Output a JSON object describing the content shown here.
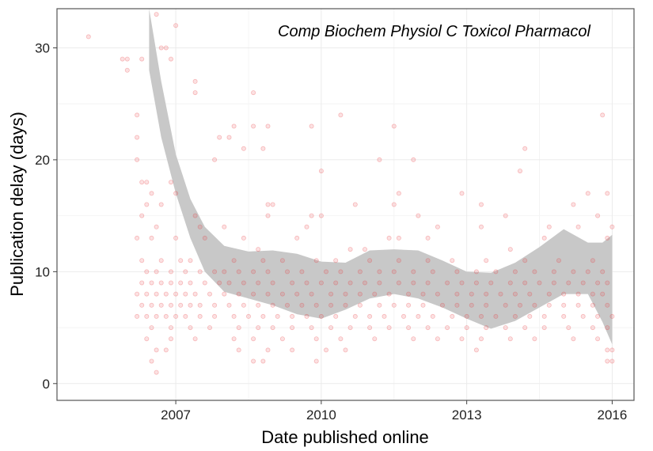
{
  "chart_data": {
    "type": "scatter",
    "title": "Comp Biochem Physiol C Toxicol Pharmacol",
    "xlabel": "Date published online",
    "ylabel": "Publication delay (days)",
    "xlim": [
      2004.55,
      2016.45
    ],
    "ylim": [
      -1.5,
      33.5
    ],
    "x_ticks": [
      {
        "value": 2007,
        "label": "2007"
      },
      {
        "value": 2010,
        "label": "2010"
      },
      {
        "value": 2013,
        "label": "2013"
      },
      {
        "value": 2016,
        "label": "2016"
      }
    ],
    "y_ticks": [
      {
        "value": 0,
        "label": "0"
      },
      {
        "value": 10,
        "label": "10"
      },
      {
        "value": 20,
        "label": "20"
      },
      {
        "value": 30,
        "label": "30"
      }
    ],
    "grid": true,
    "point_color": "#e8393c",
    "band_color": "#c8c8c8",
    "points": [
      [
        2005.2,
        31
      ],
      [
        2005.9,
        29
      ],
      [
        2006.0,
        29
      ],
      [
        2006.0,
        28
      ],
      [
        2006.3,
        29
      ],
      [
        2006.6,
        33
      ],
      [
        2006.7,
        30
      ],
      [
        2006.8,
        30
      ],
      [
        2006.9,
        29
      ],
      [
        2007.0,
        32
      ],
      [
        2007.4,
        27
      ],
      [
        2007.4,
        26
      ],
      [
        2008.6,
        26
      ],
      [
        2008.2,
        23
      ],
      [
        2008.6,
        23
      ],
      [
        2008.9,
        23
      ],
      [
        2009.8,
        23
      ],
      [
        2010.4,
        24
      ],
      [
        2011.5,
        23
      ],
      [
        2014.2,
        21
      ],
      [
        2015.8,
        24
      ],
      [
        2006.2,
        24
      ],
      [
        2006.2,
        22
      ],
      [
        2006.2,
        20
      ],
      [
        2006.3,
        18
      ],
      [
        2007.9,
        22
      ],
      [
        2008.1,
        22
      ],
      [
        2007.8,
        20
      ],
      [
        2008.4,
        21
      ],
      [
        2008.8,
        21
      ],
      [
        2011.2,
        20
      ],
      [
        2011.9,
        20
      ],
      [
        2014.1,
        19
      ],
      [
        2010.0,
        19
      ],
      [
        2006.4,
        18
      ],
      [
        2006.9,
        18
      ],
      [
        2006.5,
        17
      ],
      [
        2007.0,
        17
      ],
      [
        2012.9,
        17
      ],
      [
        2015.5,
        17
      ],
      [
        2015.9,
        17
      ],
      [
        2011.6,
        17
      ],
      [
        2006.4,
        16
      ],
      [
        2006.7,
        16
      ],
      [
        2008.9,
        16
      ],
      [
        2009.0,
        16
      ],
      [
        2010.7,
        16
      ],
      [
        2011.5,
        16
      ],
      [
        2013.3,
        16
      ],
      [
        2015.2,
        16
      ],
      [
        2006.3,
        15
      ],
      [
        2007.4,
        15
      ],
      [
        2008.9,
        15
      ],
      [
        2009.8,
        15
      ],
      [
        2010.0,
        15
      ],
      [
        2013.8,
        15
      ],
      [
        2015.7,
        15
      ],
      [
        2012.0,
        15
      ],
      [
        2006.6,
        14
      ],
      [
        2007.5,
        14
      ],
      [
        2009.7,
        14
      ],
      [
        2012.4,
        14
      ],
      [
        2013.3,
        14
      ],
      [
        2014.7,
        14
      ],
      [
        2015.3,
        14
      ],
      [
        2016.0,
        14
      ],
      [
        2008.0,
        14
      ],
      [
        2006.2,
        13
      ],
      [
        2006.5,
        13
      ],
      [
        2007.0,
        13
      ],
      [
        2007.6,
        13
      ],
      [
        2008.4,
        13
      ],
      [
        2009.5,
        13
      ],
      [
        2011.4,
        13
      ],
      [
        2011.6,
        13
      ],
      [
        2012.2,
        13
      ],
      [
        2014.6,
        13
      ],
      [
        2015.9,
        13
      ],
      [
        2010.6,
        12
      ],
      [
        2010.9,
        12
      ],
      [
        2008.7,
        12
      ],
      [
        2013.9,
        12
      ],
      [
        2006.3,
        11
      ],
      [
        2006.7,
        11
      ],
      [
        2007.1,
        11
      ],
      [
        2007.3,
        11
      ],
      [
        2008.2,
        11
      ],
      [
        2008.8,
        11
      ],
      [
        2009.2,
        11
      ],
      [
        2009.9,
        11
      ],
      [
        2010.3,
        11
      ],
      [
        2011.0,
        11
      ],
      [
        2011.6,
        11
      ],
      [
        2012.2,
        11
      ],
      [
        2012.7,
        11
      ],
      [
        2013.4,
        11
      ],
      [
        2014.2,
        11
      ],
      [
        2014.9,
        11
      ],
      [
        2015.6,
        11
      ],
      [
        2006.4,
        10
      ],
      [
        2006.6,
        10
      ],
      [
        2006.9,
        10
      ],
      [
        2007.2,
        10
      ],
      [
        2007.5,
        10
      ],
      [
        2007.8,
        10
      ],
      [
        2008.0,
        10
      ],
      [
        2008.3,
        10
      ],
      [
        2008.6,
        10
      ],
      [
        2008.9,
        10
      ],
      [
        2009.3,
        10
      ],
      [
        2009.6,
        10
      ],
      [
        2010.1,
        10
      ],
      [
        2010.4,
        10
      ],
      [
        2010.8,
        10
      ],
      [
        2011.2,
        10
      ],
      [
        2011.5,
        10
      ],
      [
        2011.9,
        10
      ],
      [
        2012.3,
        10
      ],
      [
        2012.8,
        10
      ],
      [
        2013.2,
        10
      ],
      [
        2013.6,
        10
      ],
      [
        2014.0,
        10
      ],
      [
        2014.4,
        10
      ],
      [
        2014.8,
        10
      ],
      [
        2015.2,
        10
      ],
      [
        2015.5,
        10
      ],
      [
        2015.8,
        10
      ],
      [
        2006.3,
        9
      ],
      [
        2006.5,
        9
      ],
      [
        2006.7,
        9
      ],
      [
        2006.9,
        9
      ],
      [
        2007.1,
        9
      ],
      [
        2007.3,
        9
      ],
      [
        2007.6,
        9
      ],
      [
        2007.9,
        9
      ],
      [
        2008.1,
        9
      ],
      [
        2008.4,
        9
      ],
      [
        2008.7,
        9
      ],
      [
        2009.0,
        9
      ],
      [
        2009.4,
        9
      ],
      [
        2009.7,
        9
      ],
      [
        2010.0,
        9
      ],
      [
        2010.3,
        9
      ],
      [
        2010.6,
        9
      ],
      [
        2010.9,
        9
      ],
      [
        2011.2,
        9
      ],
      [
        2011.6,
        9
      ],
      [
        2011.9,
        9
      ],
      [
        2012.2,
        9
      ],
      [
        2012.6,
        9
      ],
      [
        2012.9,
        9
      ],
      [
        2013.2,
        9
      ],
      [
        2013.5,
        9
      ],
      [
        2013.9,
        9
      ],
      [
        2014.2,
        9
      ],
      [
        2014.5,
        9
      ],
      [
        2014.8,
        9
      ],
      [
        2015.1,
        9
      ],
      [
        2015.4,
        9
      ],
      [
        2015.7,
        9
      ],
      [
        2015.9,
        9
      ],
      [
        2006.2,
        8
      ],
      [
        2006.4,
        8
      ],
      [
        2006.6,
        8
      ],
      [
        2006.8,
        8
      ],
      [
        2007.0,
        8
      ],
      [
        2007.2,
        8
      ],
      [
        2007.4,
        8
      ],
      [
        2007.7,
        8
      ],
      [
        2008.0,
        8
      ],
      [
        2008.3,
        8
      ],
      [
        2008.6,
        8
      ],
      [
        2008.9,
        8
      ],
      [
        2009.2,
        8
      ],
      [
        2009.5,
        8
      ],
      [
        2009.8,
        8
      ],
      [
        2010.2,
        8
      ],
      [
        2010.5,
        8
      ],
      [
        2010.8,
        8
      ],
      [
        2011.1,
        8
      ],
      [
        2011.4,
        8
      ],
      [
        2011.8,
        8
      ],
      [
        2012.1,
        8
      ],
      [
        2012.4,
        8
      ],
      [
        2012.8,
        8
      ],
      [
        2013.1,
        8
      ],
      [
        2013.4,
        8
      ],
      [
        2013.7,
        8
      ],
      [
        2014.0,
        8
      ],
      [
        2014.3,
        8
      ],
      [
        2014.7,
        8
      ],
      [
        2015.0,
        8
      ],
      [
        2015.3,
        8
      ],
      [
        2015.6,
        8
      ],
      [
        2015.8,
        8
      ],
      [
        2006.3,
        7
      ],
      [
        2006.5,
        7
      ],
      [
        2006.7,
        7
      ],
      [
        2006.9,
        7
      ],
      [
        2007.1,
        7
      ],
      [
        2007.3,
        7
      ],
      [
        2007.5,
        7
      ],
      [
        2007.8,
        7
      ],
      [
        2008.1,
        7
      ],
      [
        2008.4,
        7
      ],
      [
        2008.7,
        7
      ],
      [
        2009.0,
        7
      ],
      [
        2009.3,
        7
      ],
      [
        2009.6,
        7
      ],
      [
        2009.9,
        7
      ],
      [
        2010.2,
        7
      ],
      [
        2010.5,
        7
      ],
      [
        2010.8,
        7
      ],
      [
        2011.2,
        7
      ],
      [
        2011.5,
        7
      ],
      [
        2011.8,
        7
      ],
      [
        2012.1,
        7
      ],
      [
        2012.5,
        7
      ],
      [
        2012.8,
        7
      ],
      [
        2013.1,
        7
      ],
      [
        2013.4,
        7
      ],
      [
        2013.8,
        7
      ],
      [
        2014.1,
        7
      ],
      [
        2014.4,
        7
      ],
      [
        2014.7,
        7
      ],
      [
        2015.0,
        7
      ],
      [
        2015.3,
        7
      ],
      [
        2015.6,
        7
      ],
      [
        2015.9,
        7
      ],
      [
        2006.2,
        6
      ],
      [
        2006.4,
        6
      ],
      [
        2006.6,
        6
      ],
      [
        2006.8,
        6
      ],
      [
        2007.0,
        6
      ],
      [
        2007.2,
        6
      ],
      [
        2007.5,
        6
      ],
      [
        2007.8,
        6
      ],
      [
        2008.2,
        6
      ],
      [
        2008.5,
        6
      ],
      [
        2008.8,
        6
      ],
      [
        2009.1,
        6
      ],
      [
        2009.4,
        6
      ],
      [
        2009.7,
        6
      ],
      [
        2010.0,
        6
      ],
      [
        2010.3,
        6
      ],
      [
        2010.7,
        6
      ],
      [
        2011.0,
        6
      ],
      [
        2011.3,
        6
      ],
      [
        2011.7,
        6
      ],
      [
        2012.0,
        6
      ],
      [
        2012.3,
        6
      ],
      [
        2012.7,
        6
      ],
      [
        2013.0,
        6
      ],
      [
        2013.3,
        6
      ],
      [
        2013.6,
        6
      ],
      [
        2014.0,
        6
      ],
      [
        2014.3,
        6
      ],
      [
        2014.6,
        6
      ],
      [
        2015.0,
        6
      ],
      [
        2015.4,
        6
      ],
      [
        2015.7,
        6
      ],
      [
        2016.0,
        6
      ],
      [
        2006.5,
        5
      ],
      [
        2006.9,
        5
      ],
      [
        2007.3,
        5
      ],
      [
        2007.7,
        5
      ],
      [
        2008.3,
        5
      ],
      [
        2008.7,
        5
      ],
      [
        2009.0,
        5
      ],
      [
        2009.4,
        5
      ],
      [
        2009.8,
        5
      ],
      [
        2010.2,
        5
      ],
      [
        2010.6,
        5
      ],
      [
        2011.0,
        5
      ],
      [
        2011.4,
        5
      ],
      [
        2011.8,
        5
      ],
      [
        2012.2,
        5
      ],
      [
        2012.6,
        5
      ],
      [
        2013.0,
        5
      ],
      [
        2013.4,
        5
      ],
      [
        2013.8,
        5
      ],
      [
        2014.2,
        5
      ],
      [
        2014.6,
        5
      ],
      [
        2015.1,
        5
      ],
      [
        2015.6,
        5
      ],
      [
        2015.9,
        5
      ],
      [
        2006.4,
        4
      ],
      [
        2006.9,
        4
      ],
      [
        2007.4,
        4
      ],
      [
        2008.2,
        4
      ],
      [
        2008.6,
        4
      ],
      [
        2009.2,
        4
      ],
      [
        2009.9,
        4
      ],
      [
        2010.4,
        4
      ],
      [
        2011.1,
        4
      ],
      [
        2011.9,
        4
      ],
      [
        2012.4,
        4
      ],
      [
        2012.9,
        4
      ],
      [
        2013.3,
        4
      ],
      [
        2013.9,
        4
      ],
      [
        2014.4,
        4
      ],
      [
        2015.2,
        4
      ],
      [
        2015.7,
        4
      ],
      [
        2006.6,
        3
      ],
      [
        2006.8,
        3
      ],
      [
        2008.3,
        3
      ],
      [
        2008.9,
        3
      ],
      [
        2009.4,
        3
      ],
      [
        2010.1,
        3
      ],
      [
        2010.5,
        3
      ],
      [
        2013.2,
        3
      ],
      [
        2015.9,
        3
      ],
      [
        2016.0,
        3
      ],
      [
        2006.5,
        2
      ],
      [
        2008.6,
        2
      ],
      [
        2008.8,
        2
      ],
      [
        2009.9,
        2
      ],
      [
        2015.9,
        2
      ],
      [
        2016.0,
        2
      ],
      [
        2006.6,
        1
      ]
    ],
    "smooth_band": {
      "x": [
        2006.45,
        2006.7,
        2007.0,
        2007.3,
        2007.6,
        2008.0,
        2008.5,
        2009.0,
        2009.5,
        2010.0,
        2010.5,
        2011.0,
        2011.5,
        2012.0,
        2012.5,
        2013.0,
        2013.5,
        2014.0,
        2014.5,
        2015.0,
        2015.5,
        2015.8,
        2016.0
      ],
      "upper": [
        34.5,
        27.0,
        20.5,
        16.5,
        14.0,
        12.3,
        11.8,
        11.9,
        11.6,
        10.9,
        10.8,
        11.9,
        12.0,
        11.9,
        11.0,
        10.0,
        9.9,
        10.8,
        12.2,
        13.8,
        12.6,
        12.6,
        13.3
      ],
      "lower": [
        28.0,
        22.0,
        17.0,
        13.0,
        10.0,
        8.2,
        7.6,
        7.0,
        6.2,
        5.8,
        6.6,
        7.6,
        8.0,
        7.6,
        6.8,
        5.8,
        4.9,
        5.6,
        6.8,
        8.0,
        8.0,
        5.5,
        3.5
      ]
    }
  }
}
